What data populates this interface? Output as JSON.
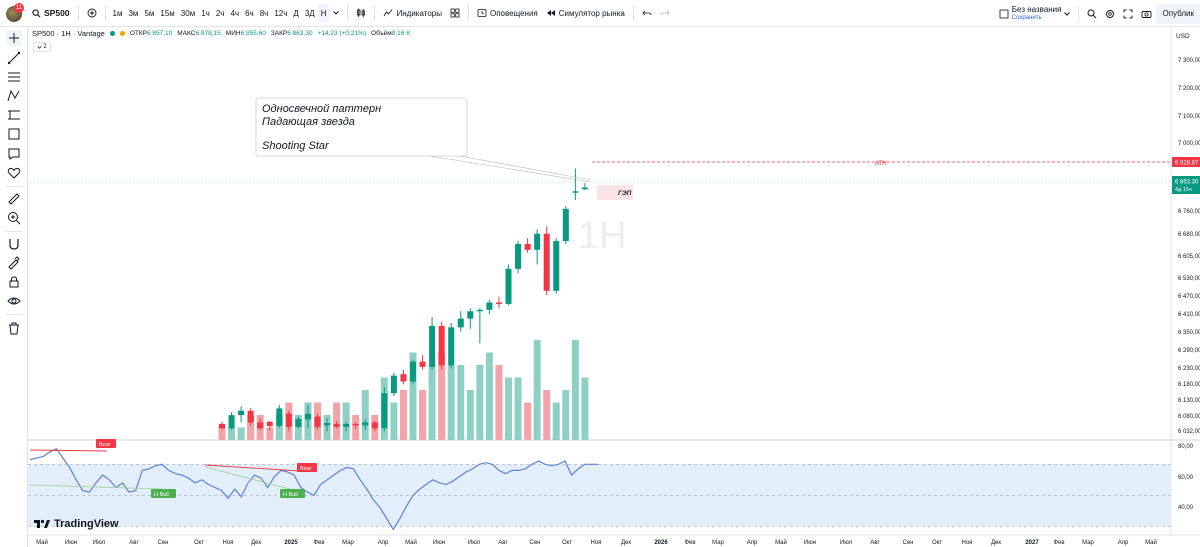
{
  "topbar": {
    "badge": "11",
    "symbol": "SP500",
    "timeframes": [
      "1м",
      "3м",
      "5м",
      "15м",
      "30м",
      "1ч",
      "2ч",
      "4ч",
      "6ч",
      "8ч",
      "12ч",
      "Д",
      "3Д",
      "Н"
    ],
    "active_timeframe": "Н",
    "indicators_label": "Индикаторы",
    "alerts_label": "Оповещения",
    "replay_label": "Симулятор рынка",
    "layout_name": "Без названия",
    "layout_saved": "Сохранить",
    "publish_label": "Опублик"
  },
  "legend": {
    "title": "SP500 · 1H · Vantage",
    "open_label": "ОТКР",
    "open": "6 857,10",
    "high_label": "МАКС",
    "high": "6 878,15",
    "low_label": "МИН",
    "low": "6 855,60",
    "close_label": "ЗАКР",
    "close": "6 863,30",
    "change": "+14,23 (+0,21%)",
    "volume_label": "Объём",
    "volume": "8,16 K",
    "collapse_count": "2"
  },
  "annotation": {
    "line1": "Односвечной паттерн",
    "line2": "Падающая звезда",
    "line3": "Shooting Star"
  },
  "labels": {
    "ath": "ATH",
    "gap": "ГЭП",
    "bear1": "Bear",
    "bear2": "Bear",
    "hbull1": "H Bull",
    "hbull2": "H Bull",
    "watermark_h": "1H"
  },
  "price_axis": {
    "currency": "USD",
    "ticks": [
      "7 300,00",
      "7 200,00",
      "7 100,00",
      "7 000,00",
      "6 928,87",
      "6 863,30",
      "6 760,00",
      "6 680,00",
      "6 605,00",
      "6 530,00",
      "6 470,00",
      "6 410,00",
      "6 350,00",
      "6 290,00",
      "6 230,00",
      "6 180,00",
      "6 130,00",
      "6 080,00",
      "6 032,00"
    ],
    "ath_value": "6 928,87",
    "last_value": "6 863,30",
    "last_countdown": "4д 15ч"
  },
  "rsi_axis": {
    "ticks": [
      "80,00",
      "60,00",
      "40,00"
    ]
  },
  "time_axis": {
    "ticks": [
      "Май",
      "Июн",
      "Июл",
      "Авг",
      "Сен",
      "Окт",
      "Ноя",
      "Дек",
      "2025",
      "Фев",
      "Мар",
      "Апр",
      "Май",
      "Июн",
      "Июл",
      "Авг",
      "Сен",
      "Окт",
      "Ноя",
      "Дек",
      "2026",
      "Фев",
      "Мар",
      "Апр",
      "Май",
      "Июн",
      "Июл",
      "Авг",
      "Сен",
      "Окт",
      "Ноя",
      "Дек",
      "2027",
      "Фев",
      "Мар",
      "Апр",
      "Май"
    ]
  },
  "watermark": {
    "brand": "TradingView"
  },
  "colors": {
    "up": "#089981",
    "down": "#f23645",
    "vol_up": "#8fd0c5",
    "vol_down": "#f4a3a8",
    "rsi_line": "#5b84d4",
    "rsi_band": "#e3eefb",
    "accent": "#2962ff"
  },
  "chart_data": {
    "type": "candlestick",
    "price_range": [
      6000,
      7350
    ],
    "candles": [
      {
        "o": 6055,
        "h": 6063,
        "l": 6036,
        "c": 6040
      },
      {
        "o": 6040,
        "h": 6095,
        "l": 6036,
        "c": 6085
      },
      {
        "o": 6085,
        "h": 6115,
        "l": 6060,
        "c": 6100
      },
      {
        "o": 6100,
        "h": 6110,
        "l": 6050,
        "c": 6060
      },
      {
        "o": 6060,
        "h": 6075,
        "l": 6034,
        "c": 6040
      },
      {
        "o": 6062,
        "h": 6065,
        "l": 6034,
        "c": 6048
      },
      {
        "o": 6048,
        "h": 6120,
        "l": 6042,
        "c": 6108
      },
      {
        "o": 6090,
        "h": 6100,
        "l": 6030,
        "c": 6045
      },
      {
        "o": 6045,
        "h": 6080,
        "l": 6040,
        "c": 6072
      },
      {
        "o": 6070,
        "h": 6120,
        "l": 6040,
        "c": 6090
      },
      {
        "o": 6080,
        "h": 6090,
        "l": 6036,
        "c": 6045
      },
      {
        "o": 6050,
        "h": 6075,
        "l": 6030,
        "c": 6058
      },
      {
        "o": 6055,
        "h": 6065,
        "l": 6040,
        "c": 6045
      },
      {
        "o": 6045,
        "h": 6062,
        "l": 6030,
        "c": 6055
      },
      {
        "o": 6055,
        "h": 6060,
        "l": 6038,
        "c": 6050
      },
      {
        "o": 6050,
        "h": 6070,
        "l": 6035,
        "c": 6060
      },
      {
        "o": 6060,
        "h": 6065,
        "l": 6030,
        "c": 6040
      },
      {
        "o": 6040,
        "h": 6180,
        "l": 6030,
        "c": 6160
      },
      {
        "o": 6160,
        "h": 6230,
        "l": 6150,
        "c": 6220
      },
      {
        "o": 6225,
        "h": 6240,
        "l": 6190,
        "c": 6200
      },
      {
        "o": 6200,
        "h": 6275,
        "l": 6190,
        "c": 6268
      },
      {
        "o": 6268,
        "h": 6290,
        "l": 6240,
        "c": 6250
      },
      {
        "o": 6250,
        "h": 6420,
        "l": 6240,
        "c": 6390
      },
      {
        "o": 6390,
        "h": 6405,
        "l": 6240,
        "c": 6255
      },
      {
        "o": 6255,
        "h": 6400,
        "l": 6245,
        "c": 6385
      },
      {
        "o": 6385,
        "h": 6440,
        "l": 6370,
        "c": 6415
      },
      {
        "o": 6415,
        "h": 6450,
        "l": 6380,
        "c": 6440
      },
      {
        "o": 6440,
        "h": 6450,
        "l": 6330,
        "c": 6445
      },
      {
        "o": 6445,
        "h": 6480,
        "l": 6430,
        "c": 6470
      },
      {
        "o": 6470,
        "h": 6490,
        "l": 6450,
        "c": 6465
      },
      {
        "o": 6465,
        "h": 6600,
        "l": 6460,
        "c": 6585
      },
      {
        "o": 6585,
        "h": 6680,
        "l": 6570,
        "c": 6670
      },
      {
        "o": 6670,
        "h": 6690,
        "l": 6640,
        "c": 6650
      },
      {
        "o": 6650,
        "h": 6720,
        "l": 6600,
        "c": 6705
      },
      {
        "o": 6705,
        "h": 6730,
        "l": 6495,
        "c": 6510
      },
      {
        "o": 6510,
        "h": 6690,
        "l": 6500,
        "c": 6680
      },
      {
        "o": 6680,
        "h": 6800,
        "l": 6670,
        "c": 6790
      },
      {
        "o": 6845,
        "h": 6928,
        "l": 6820,
        "c": 6850
      },
      {
        "o": 6857,
        "h": 6878,
        "l": 6855,
        "c": 6863
      }
    ],
    "volume": [
      1,
      1,
      1,
      2,
      2,
      1,
      2,
      3,
      2,
      3,
      3,
      2,
      3,
      3,
      2,
      4,
      2,
      5,
      3,
      4,
      7,
      4,
      6,
      7,
      6,
      6,
      4,
      6,
      7,
      6,
      5,
      5,
      3,
      8,
      4,
      3,
      4,
      8,
      5
    ],
    "rsi": [
      73,
      74,
      75,
      78,
      80,
      74,
      68,
      60,
      53,
      52,
      58,
      63,
      60,
      55,
      58,
      52,
      53,
      66,
      67,
      69,
      70,
      66,
      64,
      63,
      61,
      58,
      60,
      57,
      55,
      53,
      48,
      54,
      49,
      58,
      63,
      61,
      55,
      62,
      66,
      65,
      63,
      55,
      52,
      50,
      57,
      60,
      63,
      66,
      68,
      67,
      60,
      54,
      47,
      42,
      35,
      28,
      35,
      43,
      50,
      54,
      57,
      60,
      58,
      57,
      59,
      62,
      65,
      67,
      70,
      71,
      70,
      66,
      64,
      66,
      66,
      67,
      70,
      72,
      70,
      69,
      70,
      72,
      63,
      67,
      70,
      70,
      70
    ],
    "rsi_levels": [
      70,
      50,
      30
    ],
    "rsi_range": [
      25,
      85
    ],
    "ath": 6928.87
  }
}
